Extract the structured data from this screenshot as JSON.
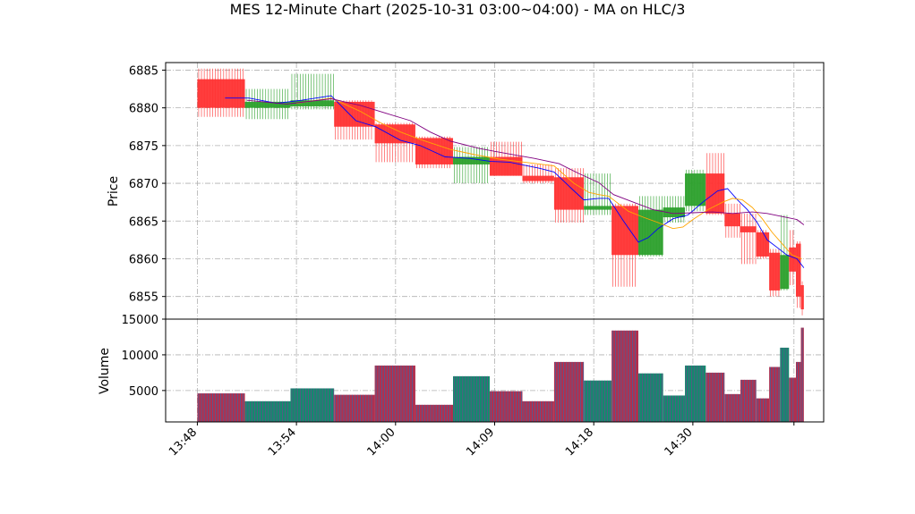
{
  "chart_data": {
    "type": "ohlc-with-volume",
    "title": "MES 12-Minute Chart (2025-10-31 03:00~04:00) - MA on HLC/3",
    "price_panel": {
      "ylabel": "Price",
      "ylim": [
        6852,
        6886
      ],
      "yticks": [
        6855,
        6860,
        6865,
        6870,
        6875,
        6880,
        6885
      ],
      "grid": true
    },
    "volume_panel": {
      "ylabel": "Volume",
      "ylim": [
        600,
        15000
      ],
      "yticks": [
        5000,
        10000,
        15000
      ],
      "grid": true
    },
    "x_tick_labels": [
      "13:48",
      "13:54",
      "14:00",
      "14:09",
      "14:18",
      "14:30"
    ],
    "x_tick_indices": [
      0,
      10,
      20,
      30,
      40,
      50
    ],
    "x_range": [
      -3.2,
      63.2
    ],
    "colors": {
      "up": "#2ca02c",
      "down": "#ff3333",
      "ma_fast": "#0000ff",
      "ma_mid": "#ffa500",
      "ma_slow": "#800080",
      "vol_up": "#138a6e",
      "vol_down": "#b0304f"
    },
    "bars": [
      {
        "x0": 0.0,
        "x1": 4.8,
        "open": 6883.8,
        "high": 6885.2,
        "low": 6878.8,
        "close": 6880.0,
        "volume": 4600
      },
      {
        "x0": 4.8,
        "x1": 9.4,
        "open": 6880.0,
        "high": 6882.5,
        "low": 6878.5,
        "close": 6880.8,
        "volume": 3500
      },
      {
        "x0": 9.4,
        "x1": 13.8,
        "open": 6880.2,
        "high": 6884.5,
        "low": 6879.8,
        "close": 6881.0,
        "volume": 5300
      },
      {
        "x0": 13.8,
        "x1": 17.9,
        "open": 6880.8,
        "high": 6881.0,
        "low": 6875.8,
        "close": 6877.5,
        "volume": 4400
      },
      {
        "x0": 17.9,
        "x1": 22.0,
        "open": 6877.8,
        "high": 6878.0,
        "low": 6872.8,
        "close": 6875.3,
        "volume": 8500
      },
      {
        "x0": 22.0,
        "x1": 25.8,
        "open": 6876.0,
        "high": 6876.2,
        "low": 6872.0,
        "close": 6872.5,
        "volume": 3000
      },
      {
        "x0": 25.8,
        "x1": 29.5,
        "open": 6872.5,
        "high": 6874.8,
        "low": 6870.0,
        "close": 6873.5,
        "volume": 7000
      },
      {
        "x0": 29.5,
        "x1": 32.8,
        "open": 6873.5,
        "high": 6875.5,
        "low": 6871.0,
        "close": 6871.0,
        "volume": 4900
      },
      {
        "x0": 32.8,
        "x1": 36.0,
        "open": 6871.0,
        "high": 6872.5,
        "low": 6870.0,
        "close": 6870.3,
        "volume": 3500
      },
      {
        "x0": 36.0,
        "x1": 39.0,
        "open": 6870.8,
        "high": 6872.0,
        "low": 6864.8,
        "close": 6866.5,
        "volume": 9000
      },
      {
        "x0": 39.0,
        "x1": 41.8,
        "open": 6866.5,
        "high": 6871.3,
        "low": 6865.8,
        "close": 6867.0,
        "volume": 6400
      },
      {
        "x0": 41.8,
        "x1": 44.5,
        "open": 6867.0,
        "high": 6867.3,
        "low": 6856.3,
        "close": 6860.5,
        "volume": 13400
      },
      {
        "x0": 44.5,
        "x1": 47.0,
        "open": 6860.5,
        "high": 6868.3,
        "low": 6860.3,
        "close": 6866.5,
        "volume": 7400
      },
      {
        "x0": 47.0,
        "x1": 49.2,
        "open": 6865.5,
        "high": 6868.3,
        "low": 6864.8,
        "close": 6866.8,
        "volume": 4300
      },
      {
        "x0": 49.2,
        "x1": 51.3,
        "open": 6867.0,
        "high": 6871.8,
        "low": 6866.3,
        "close": 6871.3,
        "volume": 8500
      },
      {
        "x0": 51.3,
        "x1": 53.2,
        "open": 6871.3,
        "high": 6874.0,
        "low": 6865.8,
        "close": 6866.0,
        "volume": 7500
      },
      {
        "x0": 53.2,
        "x1": 54.8,
        "open": 6866.0,
        "high": 6867.3,
        "low": 6862.8,
        "close": 6864.3,
        "volume": 4500
      },
      {
        "x0": 54.8,
        "x1": 56.4,
        "open": 6864.3,
        "high": 6866.0,
        "low": 6859.3,
        "close": 6863.5,
        "volume": 6500
      },
      {
        "x0": 56.4,
        "x1": 57.7,
        "open": 6863.5,
        "high": 6863.8,
        "low": 6860.0,
        "close": 6860.3,
        "volume": 3900
      },
      {
        "x0": 57.7,
        "x1": 58.8,
        "open": 6860.8,
        "high": 6861.3,
        "low": 6855.0,
        "close": 6855.8,
        "volume": 8300
      },
      {
        "x0": 58.8,
        "x1": 59.7,
        "open": 6856.0,
        "high": 6865.8,
        "low": 6855.8,
        "close": 6860.5,
        "volume": 11000
      },
      {
        "x0": 59.7,
        "x1": 60.4,
        "open": 6861.5,
        "high": 6863.8,
        "low": 6856.5,
        "close": 6858.3,
        "volume": 6800
      },
      {
        "x0": 60.4,
        "x1": 60.9,
        "open": 6862.0,
        "high": 6862.3,
        "low": 6853.5,
        "close": 6855.0,
        "volume": 9000
      },
      {
        "x0": 60.9,
        "x1": 61.2,
        "open": 6856.5,
        "high": 6857.0,
        "low": 6852.5,
        "close": 6853.3,
        "volume": 13800
      }
    ],
    "series": [
      {
        "color": "#0000ff",
        "points": [
          [
            2.8,
            6881.3
          ],
          [
            5.2,
            6881.3
          ],
          [
            8.0,
            6880.6
          ],
          [
            10.5,
            6881.0
          ],
          [
            13.5,
            6881.6
          ],
          [
            16.0,
            6878.3
          ],
          [
            18.0,
            6877.5
          ],
          [
            20.5,
            6875.7
          ],
          [
            22.5,
            6875.0
          ],
          [
            25.0,
            6873.5
          ],
          [
            27.5,
            6873.3
          ],
          [
            29.6,
            6872.9
          ],
          [
            31.5,
            6872.8
          ],
          [
            34.5,
            6872.0
          ],
          [
            36.0,
            6871.5
          ],
          [
            38.0,
            6869.0
          ],
          [
            39.0,
            6867.8
          ],
          [
            40.5,
            6868.0
          ],
          [
            41.5,
            6868.0
          ],
          [
            43.0,
            6865.0
          ],
          [
            44.5,
            6862.2
          ],
          [
            45.5,
            6862.8
          ],
          [
            46.5,
            6864.0
          ],
          [
            48.0,
            6865.3
          ],
          [
            49.5,
            6865.8
          ],
          [
            51.0,
            6867.5
          ],
          [
            52.5,
            6869.0
          ],
          [
            53.5,
            6869.3
          ],
          [
            54.5,
            6867.8
          ],
          [
            55.5,
            6866.5
          ],
          [
            56.5,
            6864.8
          ],
          [
            57.5,
            6862.5
          ],
          [
            58.5,
            6861.5
          ],
          [
            59.5,
            6860.5
          ],
          [
            60.5,
            6860.0
          ],
          [
            61.2,
            6858.8
          ]
        ]
      },
      {
        "color": "#ffa500",
        "points": [
          [
            10.0,
            6880.6
          ],
          [
            13.5,
            6881.3
          ],
          [
            16.5,
            6879.5
          ],
          [
            18.5,
            6878.0
          ],
          [
            20.5,
            6876.8
          ],
          [
            22.5,
            6875.8
          ],
          [
            25.5,
            6874.5
          ],
          [
            28.0,
            6873.8
          ],
          [
            30.5,
            6873.2
          ],
          [
            33.0,
            6872.8
          ],
          [
            36.0,
            6872.3
          ],
          [
            38.0,
            6870.0
          ],
          [
            39.5,
            6868.8
          ],
          [
            40.5,
            6868.5
          ],
          [
            41.5,
            6868.3
          ],
          [
            43.5,
            6866.3
          ],
          [
            45.0,
            6865.5
          ],
          [
            46.5,
            6864.8
          ],
          [
            48.0,
            6864.0
          ],
          [
            49.0,
            6864.2
          ],
          [
            50.0,
            6865.2
          ],
          [
            51.5,
            6866.5
          ],
          [
            53.0,
            6867.5
          ],
          [
            54.0,
            6868.0
          ],
          [
            55.0,
            6867.8
          ],
          [
            56.0,
            6866.8
          ],
          [
            57.0,
            6865.3
          ],
          [
            58.0,
            6863.5
          ],
          [
            59.0,
            6862.0
          ],
          [
            60.0,
            6860.5
          ],
          [
            61.0,
            6860.0
          ]
        ]
      },
      {
        "color": "#800080",
        "points": [
          [
            5.0,
            6881.0
          ],
          [
            9.0,
            6880.5
          ],
          [
            13.5,
            6881.2
          ],
          [
            16.5,
            6880.3
          ],
          [
            19.0,
            6879.3
          ],
          [
            21.5,
            6878.3
          ],
          [
            23.5,
            6876.8
          ],
          [
            25.5,
            6875.6
          ],
          [
            28.5,
            6874.6
          ],
          [
            31.0,
            6874.0
          ],
          [
            34.0,
            6873.3
          ],
          [
            36.5,
            6872.6
          ],
          [
            38.5,
            6871.3
          ],
          [
            40.5,
            6870.1
          ],
          [
            42.0,
            6868.5
          ],
          [
            44.0,
            6867.5
          ],
          [
            46.0,
            6866.5
          ],
          [
            48.0,
            6866.0
          ],
          [
            50.0,
            6866.1
          ],
          [
            52.0,
            6866.2
          ],
          [
            54.0,
            6866.0
          ],
          [
            56.0,
            6866.2
          ],
          [
            57.5,
            6866.0
          ],
          [
            59.0,
            6865.6
          ],
          [
            60.5,
            6865.2
          ],
          [
            61.2,
            6864.5
          ]
        ]
      }
    ]
  }
}
